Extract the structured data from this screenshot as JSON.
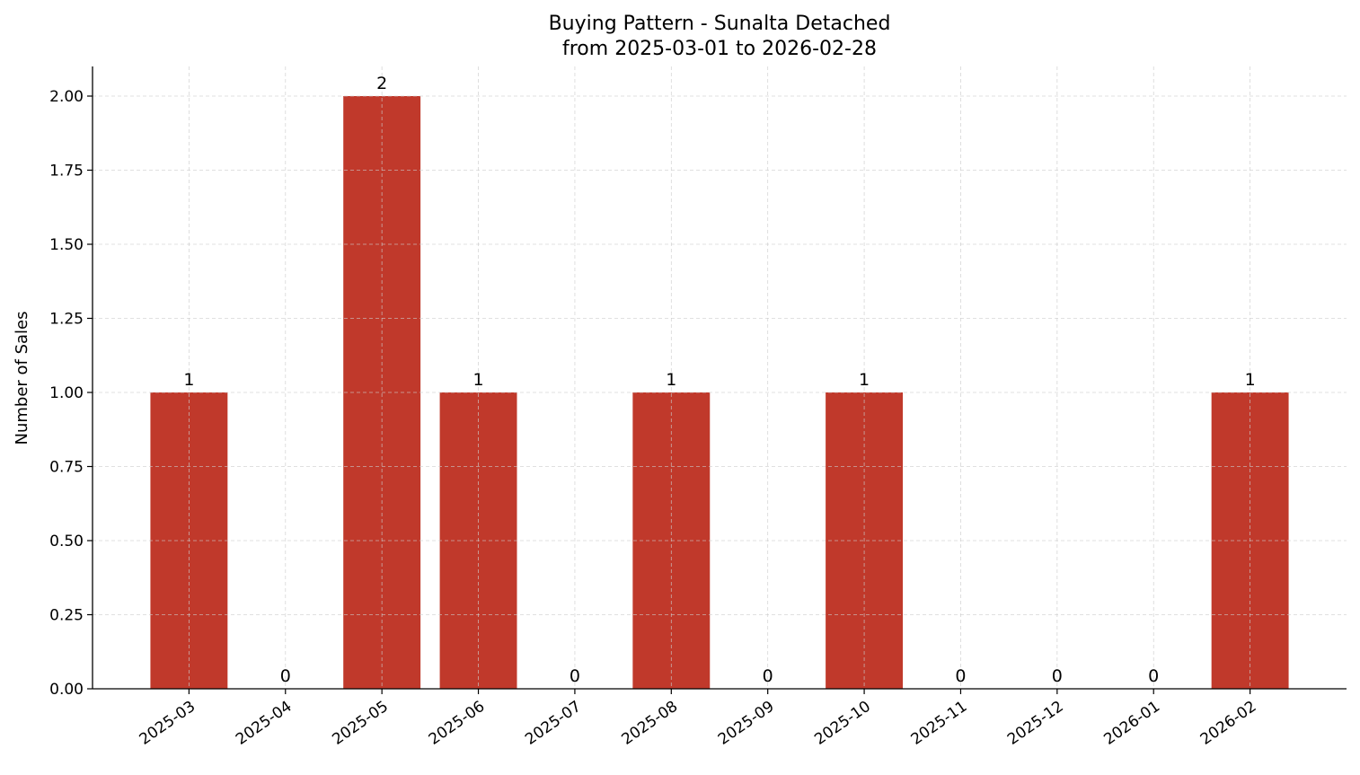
{
  "chart_data": {
    "type": "bar",
    "title": "Buying Pattern - Sunalta Detached",
    "subtitle": "from 2025-03-01 to 2026-02-28",
    "xlabel": "",
    "ylabel": "Number of Sales",
    "categories": [
      "2025-03",
      "2025-04",
      "2025-05",
      "2025-06",
      "2025-07",
      "2025-08",
      "2025-09",
      "2025-10",
      "2025-11",
      "2025-12",
      "2026-01",
      "2026-02"
    ],
    "values": [
      1,
      0,
      2,
      1,
      0,
      1,
      0,
      1,
      0,
      0,
      0,
      1
    ],
    "data_labels": [
      "1",
      "0",
      "2",
      "1",
      "0",
      "1",
      "0",
      "1",
      "0",
      "0",
      "0",
      "1"
    ],
    "ylim": [
      0,
      2.1
    ],
    "yticks": [
      0,
      0.25,
      0.5,
      0.75,
      1.0,
      1.25,
      1.5,
      1.75,
      2.0
    ],
    "ytick_labels": [
      "0.00",
      "0.25",
      "0.50",
      "0.75",
      "1.00",
      "1.25",
      "1.50",
      "1.75",
      "2.00"
    ],
    "grid": true,
    "bar_color": "#c0392b"
  }
}
